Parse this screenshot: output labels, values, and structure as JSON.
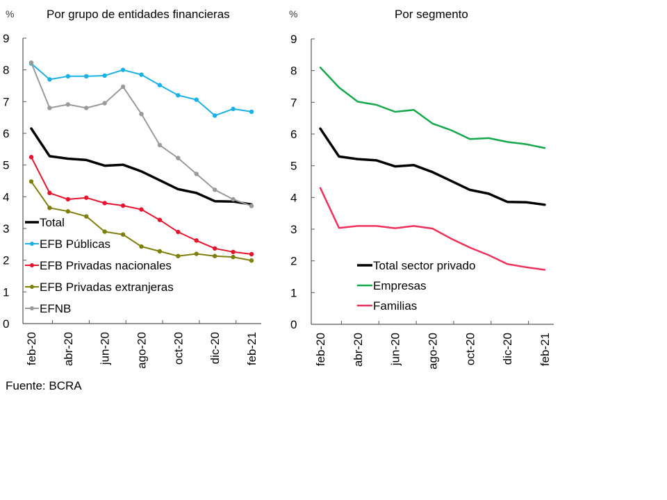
{
  "source": "Fuente: BCRA",
  "chart_data": [
    {
      "type": "line",
      "title": "Por grupo de entidades financieras",
      "unit": "%",
      "xlabel": "",
      "ylabel": "%",
      "ylim": [
        0,
        9
      ],
      "yticks": [
        "0",
        "1",
        "2",
        "3",
        "4",
        "5",
        "6",
        "7",
        "8",
        "9"
      ],
      "x": [
        "feb-20",
        "mar-20",
        "abr-20",
        "may-20",
        "jun-20",
        "jul-20",
        "ago-20",
        "sep-20",
        "oct-20",
        "nov-20",
        "dic-20",
        "ene-21",
        "feb-21"
      ],
      "xtick_labels": [
        "feb-20",
        "abr-20",
        "jun-20",
        "ago-20",
        "oct-20",
        "dic-20",
        "feb-21"
      ],
      "grid": false,
      "legend_position": "bottom-left",
      "series": [
        {
          "name": "Total",
          "color": "#000000",
          "markers": false,
          "width": 3.5,
          "values": [
            6.15,
            5.28,
            5.2,
            5.16,
            4.98,
            5.01,
            4.8,
            4.52,
            4.24,
            4.12,
            3.86,
            3.85,
            3.76
          ]
        },
        {
          "name": "EFB Públicas",
          "color": "#1ab0e8",
          "markers": true,
          "width": 2,
          "values": [
            8.2,
            7.7,
            7.8,
            7.8,
            7.82,
            8.0,
            7.85,
            7.52,
            7.2,
            7.06,
            6.56,
            6.77,
            6.68
          ]
        },
        {
          "name": "EFB Privadas nacionales",
          "color": "#e8142d",
          "markers": true,
          "width": 2,
          "values": [
            5.25,
            4.12,
            3.92,
            3.97,
            3.8,
            3.72,
            3.6,
            3.27,
            2.89,
            2.62,
            2.37,
            2.26,
            2.19
          ]
        },
        {
          "name": "EFB Privadas extranjeras",
          "color": "#7f7f0c",
          "markers": true,
          "width": 2,
          "values": [
            4.48,
            3.65,
            3.54,
            3.38,
            2.9,
            2.81,
            2.43,
            2.28,
            2.13,
            2.2,
            2.13,
            2.1,
            1.99
          ]
        },
        {
          "name": "EFNB",
          "color": "#9a9a9a",
          "markers": true,
          "width": 2,
          "values": [
            8.23,
            6.8,
            6.91,
            6.8,
            6.95,
            7.47,
            6.61,
            5.63,
            5.22,
            4.72,
            4.22,
            3.92,
            3.71
          ]
        }
      ]
    },
    {
      "type": "line",
      "title": "Por segmento",
      "unit": "%",
      "xlabel": "",
      "ylabel": "%",
      "ylim": [
        0,
        9
      ],
      "yticks": [
        "0",
        "1",
        "2",
        "3",
        "4",
        "5",
        "6",
        "7",
        "8",
        "9"
      ],
      "x": [
        "feb-20",
        "mar-20",
        "abr-20",
        "may-20",
        "jun-20",
        "jul-20",
        "ago-20",
        "sep-20",
        "oct-20",
        "nov-20",
        "dic-20",
        "ene-21",
        "feb-21"
      ],
      "xtick_labels": [
        "feb-20",
        "abr-20",
        "jun-20",
        "ago-20",
        "oct-20",
        "dic-20",
        "feb-21"
      ],
      "grid": false,
      "legend_position": "bottom-center",
      "series": [
        {
          "name": "Total sector privado",
          "color": "#000000",
          "markers": false,
          "width": 3.5,
          "values": [
            6.17,
            5.29,
            5.21,
            5.17,
            4.98,
            5.02,
            4.8,
            4.52,
            4.24,
            4.12,
            3.86,
            3.85,
            3.77
          ]
        },
        {
          "name": "Empresas",
          "color": "#14a84a",
          "markers": false,
          "width": 2.5,
          "values": [
            8.1,
            7.47,
            7.02,
            6.92,
            6.7,
            6.76,
            6.33,
            6.12,
            5.84,
            5.87,
            5.75,
            5.68,
            5.56
          ]
        },
        {
          "name": "Familias",
          "color": "#f0305a",
          "markers": false,
          "width": 2.5,
          "values": [
            4.3,
            3.04,
            3.1,
            3.1,
            3.03,
            3.1,
            3.02,
            2.7,
            2.42,
            2.18,
            1.9,
            1.8,
            1.72
          ]
        }
      ]
    }
  ]
}
